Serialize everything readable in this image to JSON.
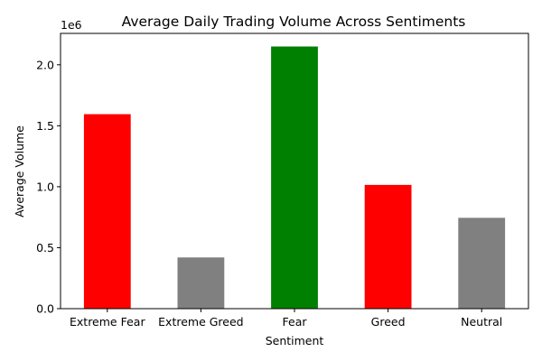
{
  "chart_data": {
    "type": "bar",
    "title": "Average Daily Trading Volume Across Sentiments",
    "xlabel": "Sentiment",
    "ylabel": "Average Volume",
    "y_offset_label": "1e6",
    "categories": [
      "Extreme Fear",
      "Extreme Greed",
      "Fear",
      "Greed",
      "Neutral"
    ],
    "values": [
      1595000,
      420000,
      2150000,
      1015000,
      745000
    ],
    "colors": [
      "#ff0000",
      "#808080",
      "#008000",
      "#ff0000",
      "#808080"
    ],
    "ylim": [
      0,
      2257500
    ],
    "yticks": [
      0,
      500000,
      1000000,
      1500000,
      2000000
    ],
    "ytick_labels": [
      "0.0",
      "0.5",
      "1.0",
      "1.5",
      "2.0"
    ],
    "grid": false,
    "legend": "none"
  }
}
